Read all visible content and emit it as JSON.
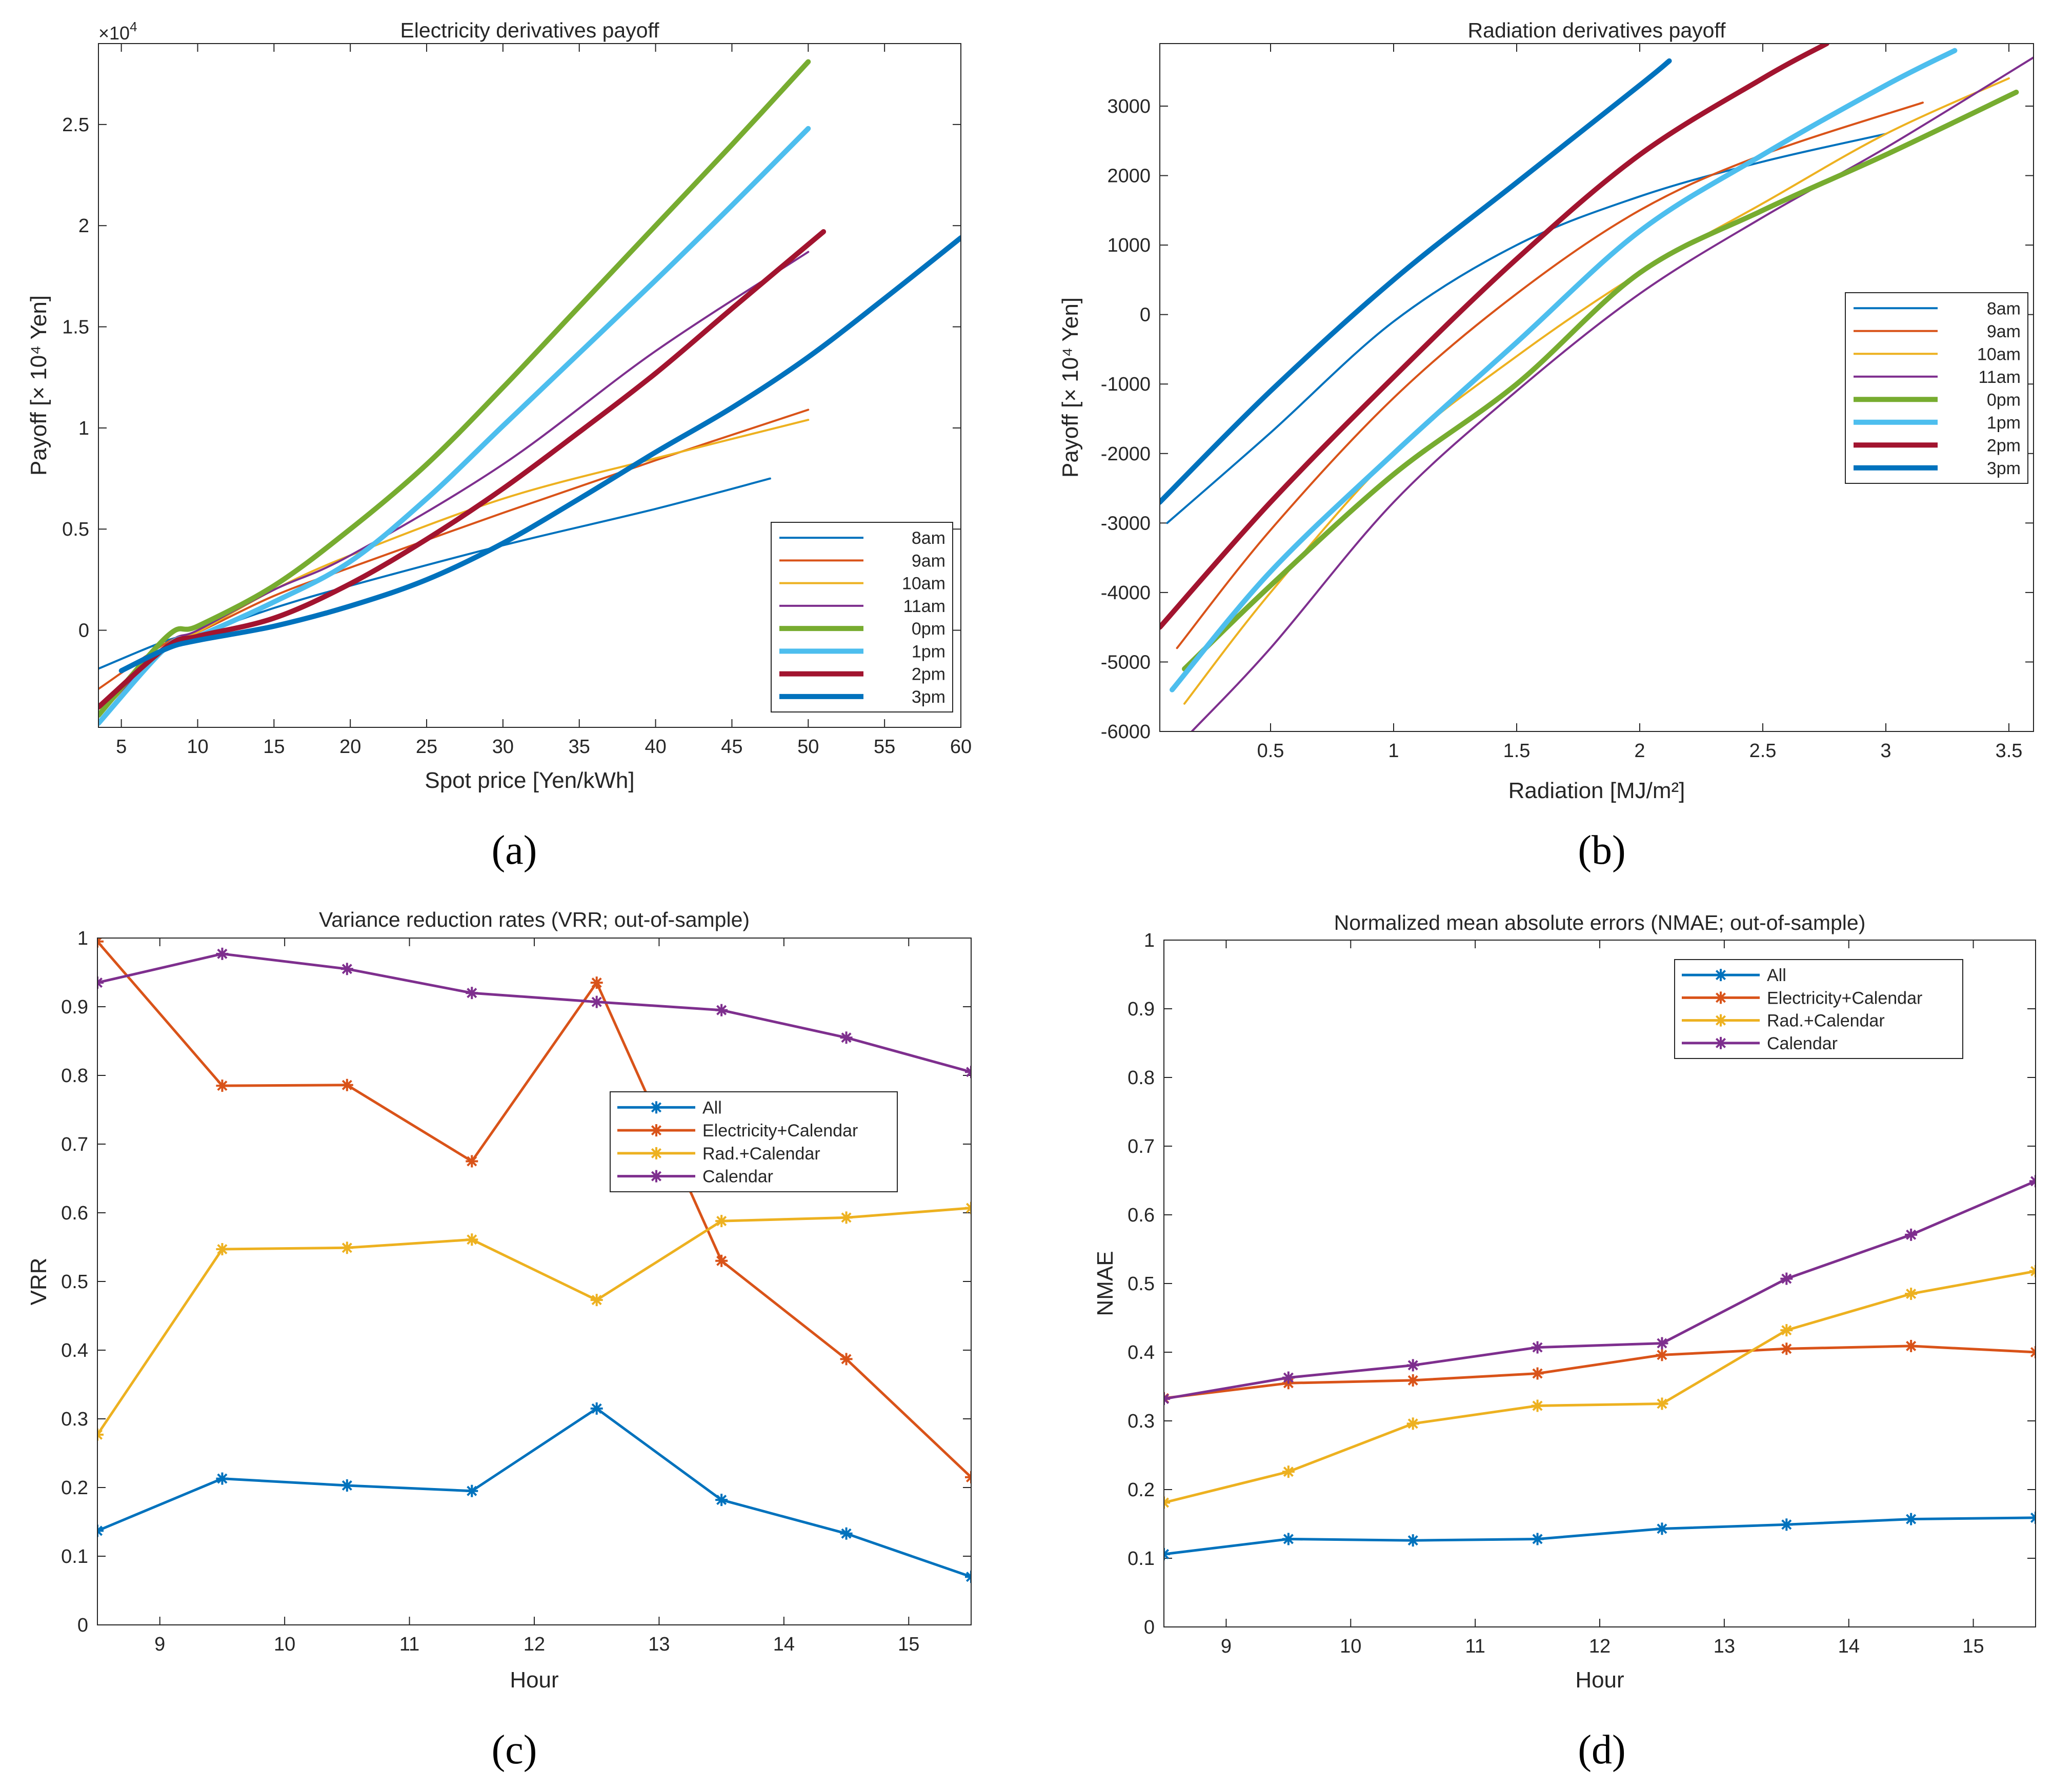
{
  "chart_data": [
    {
      "id": "a",
      "type": "line",
      "caption": "(a)",
      "title": "Electricity derivatives payoff",
      "xlabel": "Spot price [Yen/kWh]",
      "ylabel": "Payoff [× 10⁴ Yen]",
      "exponent_label": "×10",
      "exponent_power": "4",
      "xlim": [
        3.5,
        60
      ],
      "ylim": [
        -4800,
        29000
      ],
      "xticks": [
        5,
        10,
        15,
        20,
        25,
        30,
        35,
        40,
        45,
        50,
        55,
        60
      ],
      "xtick_labels": [
        "5",
        "10",
        "15",
        "20",
        "25",
        "30",
        "35",
        "40",
        "45",
        "50",
        "55",
        "60"
      ],
      "yticks": [
        0,
        5000,
        10000,
        15000,
        20000,
        25000
      ],
      "ytick_labels": [
        "0",
        "0.5",
        "1",
        "1.5",
        "2",
        "2.5"
      ],
      "legend_position": "bottom-right",
      "series": [
        {
          "name": "8am",
          "color": "#0072BD",
          "width": "thin",
          "x": [
            3.5,
            8,
            10,
            15,
            20,
            30,
            40,
            47.5
          ],
          "y": [
            -1900,
            -500,
            -200,
            1100,
            2200,
            4200,
            6000,
            7500
          ]
        },
        {
          "name": "9am",
          "color": "#D95319",
          "width": "thin",
          "x": [
            3.5,
            8,
            10,
            15,
            20,
            30,
            40,
            50
          ],
          "y": [
            -2900,
            -600,
            -100,
            1700,
            3100,
            5800,
            8400,
            10900
          ]
        },
        {
          "name": "10am",
          "color": "#EDB120",
          "width": "thin",
          "x": [
            3.5,
            8,
            10,
            15,
            20,
            30,
            40,
            50
          ],
          "y": [
            -4200,
            -800,
            -100,
            2000,
            3700,
            6500,
            8500,
            10400
          ]
        },
        {
          "name": "11am",
          "color": "#7E2F8E",
          "width": "thin",
          "x": [
            3.5,
            8,
            10,
            15,
            20,
            30,
            40,
            50
          ],
          "y": [
            -4200,
            -700,
            0,
            2000,
            3700,
            8200,
            13800,
            18700
          ]
        },
        {
          "name": "0pm",
          "color": "#77AC30",
          "width": "thick",
          "x": [
            3.5,
            8,
            10,
            15,
            20,
            25,
            30,
            35,
            40,
            45,
            50
          ],
          "y": [
            -4200,
            -300,
            200,
            2200,
            5000,
            8200,
            12000,
            16000,
            20000,
            24000,
            28100
          ]
        },
        {
          "name": "1pm",
          "color": "#4DBEEE",
          "width": "thick",
          "x": [
            3.5,
            8,
            10,
            15,
            20,
            25,
            30,
            35,
            40,
            45,
            50
          ],
          "y": [
            -4600,
            -800,
            -300,
            1400,
            3400,
            6500,
            10100,
            13700,
            17300,
            21000,
            24800
          ]
        },
        {
          "name": "2pm",
          "color": "#A2142F",
          "width": "thick",
          "x": [
            3.5,
            8,
            10,
            15,
            20,
            25,
            30,
            35,
            40,
            45,
            51
          ],
          "y": [
            -3800,
            -800,
            -300,
            600,
            2300,
            4500,
            7000,
            9800,
            12700,
            15900,
            19700
          ]
        },
        {
          "name": "3pm",
          "color": "#0072BD",
          "width": "thick",
          "x": [
            5,
            8,
            10,
            15,
            20,
            25,
            30,
            35,
            40,
            45,
            50,
            55,
            60
          ],
          "y": [
            -2000,
            -900,
            -500,
            200,
            1200,
            2500,
            4300,
            6500,
            8800,
            11000,
            13500,
            16400,
            19400
          ]
        }
      ]
    },
    {
      "id": "b",
      "type": "line",
      "caption": "(b)",
      "title": "Radiation derivatives payoff",
      "xlabel": "Radiation [MJ/m²]",
      "ylabel": "Payoff [× 10⁴ Yen]",
      "xlim": [
        0.05,
        3.6
      ],
      "ylim": [
        -6000,
        3900
      ],
      "xticks": [
        0.5,
        1,
        1.5,
        2,
        2.5,
        3,
        3.5
      ],
      "xtick_labels": [
        "0.5",
        "1",
        "1.5",
        "2",
        "2.5",
        "3",
        "3.5"
      ],
      "yticks": [
        -6000,
        -5000,
        -4000,
        -3000,
        -2000,
        -1000,
        0,
        1000,
        2000,
        3000
      ],
      "ytick_labels": [
        "-6000",
        "-5000",
        "-4000",
        "-3000",
        "-2000",
        "-1000",
        "0",
        "1000",
        "2000",
        "3000"
      ],
      "legend_position": "top-right",
      "series": [
        {
          "name": "8am",
          "color": "#0072BD",
          "width": "thin",
          "x": [
            0.08,
            0.5,
            1,
            1.5,
            2,
            2.5,
            3.0
          ],
          "y": [
            -3000,
            -1700,
            -100,
            1000,
            1700,
            2200,
            2600
          ]
        },
        {
          "name": "9am",
          "color": "#D95319",
          "width": "thin",
          "x": [
            0.12,
            0.5,
            1,
            1.5,
            2,
            2.5,
            3.15
          ],
          "y": [
            -4800,
            -3100,
            -1200,
            300,
            1500,
            2300,
            3050
          ]
        },
        {
          "name": "10am",
          "color": "#EDB120",
          "width": "thin",
          "x": [
            0.15,
            0.5,
            1,
            1.5,
            2,
            2.5,
            3.0,
            3.5
          ],
          "y": [
            -5600,
            -4000,
            -2000,
            -600,
            600,
            1600,
            2600,
            3400
          ]
        },
        {
          "name": "11am",
          "color": "#7E2F8E",
          "width": "thin",
          "x": [
            0.18,
            0.5,
            1,
            1.5,
            2,
            2.5,
            3.0,
            3.6
          ],
          "y": [
            -6000,
            -4800,
            -2700,
            -1100,
            300,
            1400,
            2400,
            3700
          ]
        },
        {
          "name": "0pm",
          "color": "#77AC30",
          "width": "thick",
          "x": [
            0.15,
            0.5,
            1,
            1.5,
            2,
            2.5,
            3.0,
            3.53
          ],
          "y": [
            -5100,
            -3900,
            -2300,
            -1000,
            600,
            1500,
            2300,
            3200
          ]
        },
        {
          "name": "1pm",
          "color": "#4DBEEE",
          "width": "thick",
          "x": [
            0.1,
            0.5,
            1,
            1.5,
            2,
            2.5,
            3.0,
            3.28
          ],
          "y": [
            -5400,
            -3700,
            -2000,
            -400,
            1200,
            2300,
            3300,
            3800
          ]
        },
        {
          "name": "2pm",
          "color": "#A2142F",
          "width": "thick",
          "x": [
            0.05,
            0.5,
            1,
            1.5,
            2,
            2.5,
            2.76
          ],
          "y": [
            -4500,
            -2700,
            -900,
            800,
            2300,
            3400,
            3900
          ]
        },
        {
          "name": "3pm",
          "color": "#0072BD",
          "width": "thick",
          "x": [
            0.05,
            0.5,
            1,
            1.5,
            2,
            2.12
          ],
          "y": [
            -2700,
            -1100,
            500,
            1900,
            3300,
            3650
          ]
        }
      ]
    },
    {
      "id": "c",
      "type": "line",
      "caption": "(c)",
      "title": "Variance reduction rates (VRR; out-of-sample)",
      "xlabel": "Hour",
      "ylabel": "VRR",
      "xlim": [
        8.5,
        15.5
      ],
      "ylim": [
        0,
        1
      ],
      "xticks": [
        9,
        10,
        11,
        12,
        13,
        14,
        15
      ],
      "xtick_labels": [
        "9",
        "10",
        "11",
        "12",
        "13",
        "14",
        "15"
      ],
      "yticks": [
        0,
        0.1,
        0.2,
        0.3,
        0.4,
        0.5,
        0.6,
        0.7,
        0.8,
        0.9,
        1
      ],
      "ytick_labels": [
        "0",
        "0.1",
        "0.2",
        "0.3",
        "0.4",
        "0.5",
        "0.6",
        "0.7",
        "0.8",
        "0.9",
        "1"
      ],
      "legend_position": "center-right",
      "x": [
        8.5,
        9.5,
        10.5,
        11.5,
        12.5,
        13.5,
        14.5,
        15.5
      ],
      "series": [
        {
          "name": "All",
          "color": "#0072BD",
          "values": [
            0.137,
            0.213,
            0.203,
            0.195,
            0.315,
            0.182,
            0.133,
            0.07
          ]
        },
        {
          "name": "Electricity+Calendar",
          "color": "#D95319",
          "values": [
            0.995,
            0.785,
            0.786,
            0.675,
            0.935,
            0.53,
            0.387,
            0.215
          ]
        },
        {
          "name": "Rad.+Calendar",
          "color": "#EDB120",
          "values": [
            0.277,
            0.547,
            0.549,
            0.561,
            0.473,
            0.588,
            0.593,
            0.607
          ]
        },
        {
          "name": "Calendar",
          "color": "#7E2F8E",
          "values": [
            0.935,
            0.977,
            0.955,
            0.92,
            0.907,
            0.895,
            0.855,
            0.805
          ]
        }
      ]
    },
    {
      "id": "d",
      "type": "line",
      "caption": "(d)",
      "title": "Normalized mean absolute errors (NMAE; out-of-sample)",
      "xlabel": "Hour",
      "ylabel": "NMAE",
      "xlim": [
        8.5,
        15.5
      ],
      "ylim": [
        0,
        1
      ],
      "xticks": [
        9,
        10,
        11,
        12,
        13,
        14,
        15
      ],
      "xtick_labels": [
        "9",
        "10",
        "11",
        "12",
        "13",
        "14",
        "15"
      ],
      "yticks": [
        0,
        0.1,
        0.2,
        0.3,
        0.4,
        0.5,
        0.6,
        0.7,
        0.8,
        0.9,
        1
      ],
      "ytick_labels": [
        "0",
        "0.1",
        "0.2",
        "0.3",
        "0.4",
        "0.5",
        "0.6",
        "0.7",
        "0.8",
        "0.9",
        "1"
      ],
      "legend_position": "top-center",
      "x": [
        8.5,
        9.5,
        10.5,
        11.5,
        12.5,
        13.5,
        14.5,
        15.5
      ],
      "series": [
        {
          "name": "All",
          "color": "#0072BD",
          "values": [
            0.106,
            0.128,
            0.126,
            0.128,
            0.143,
            0.149,
            0.157,
            0.159
          ]
        },
        {
          "name": "Electricity+Calendar",
          "color": "#D95319",
          "values": [
            0.333,
            0.355,
            0.359,
            0.369,
            0.396,
            0.405,
            0.409,
            0.4
          ]
        },
        {
          "name": "Rad.+Calendar",
          "color": "#EDB120",
          "values": [
            0.181,
            0.226,
            0.296,
            0.322,
            0.325,
            0.432,
            0.485,
            0.518
          ]
        },
        {
          "name": "Calendar",
          "color": "#7E2F8E",
          "values": [
            0.332,
            0.363,
            0.381,
            0.407,
            0.413,
            0.507,
            0.571,
            0.649
          ]
        }
      ]
    }
  ]
}
